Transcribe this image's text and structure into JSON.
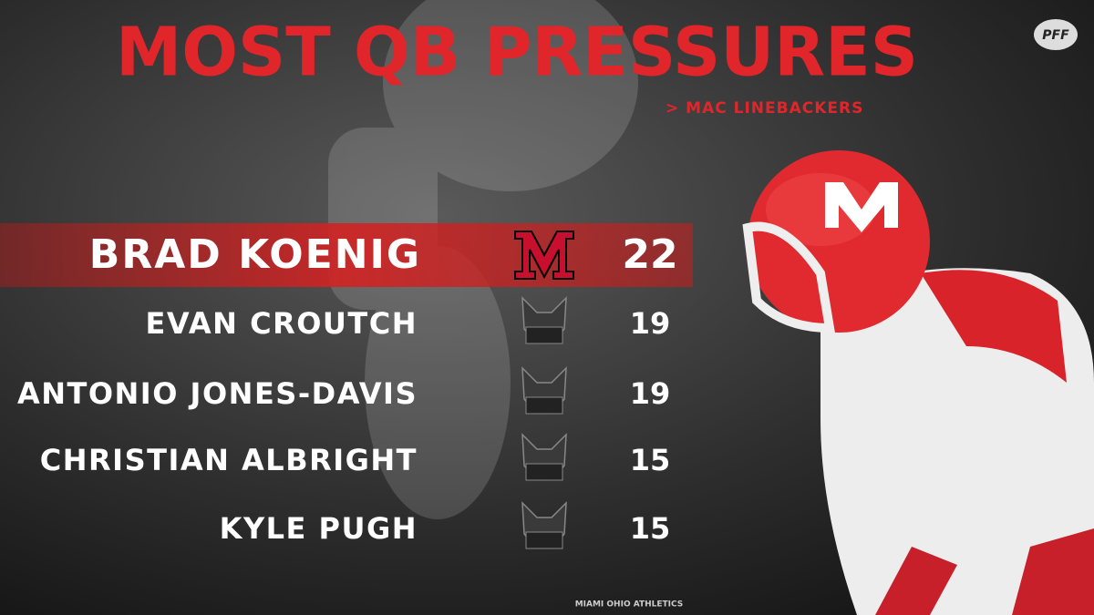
{
  "header": {
    "title": "MOST QB PRESSURES",
    "subtitle": "> MAC LINEBACKERS",
    "brand": "PFF"
  },
  "rows": [
    {
      "name": "BRAD KOENIG",
      "value": 22
    },
    {
      "name": "EVAN CROUTCH",
      "value": 19
    },
    {
      "name": "ANTONIO JONES-DAVIS",
      "value": 19
    },
    {
      "name": "CHRISTIAN ALBRIGHT",
      "value": 15
    },
    {
      "name": "KYLE PUGH",
      "value": 15
    }
  ],
  "credit": "MIAMI OHIO ATHLETICS"
}
